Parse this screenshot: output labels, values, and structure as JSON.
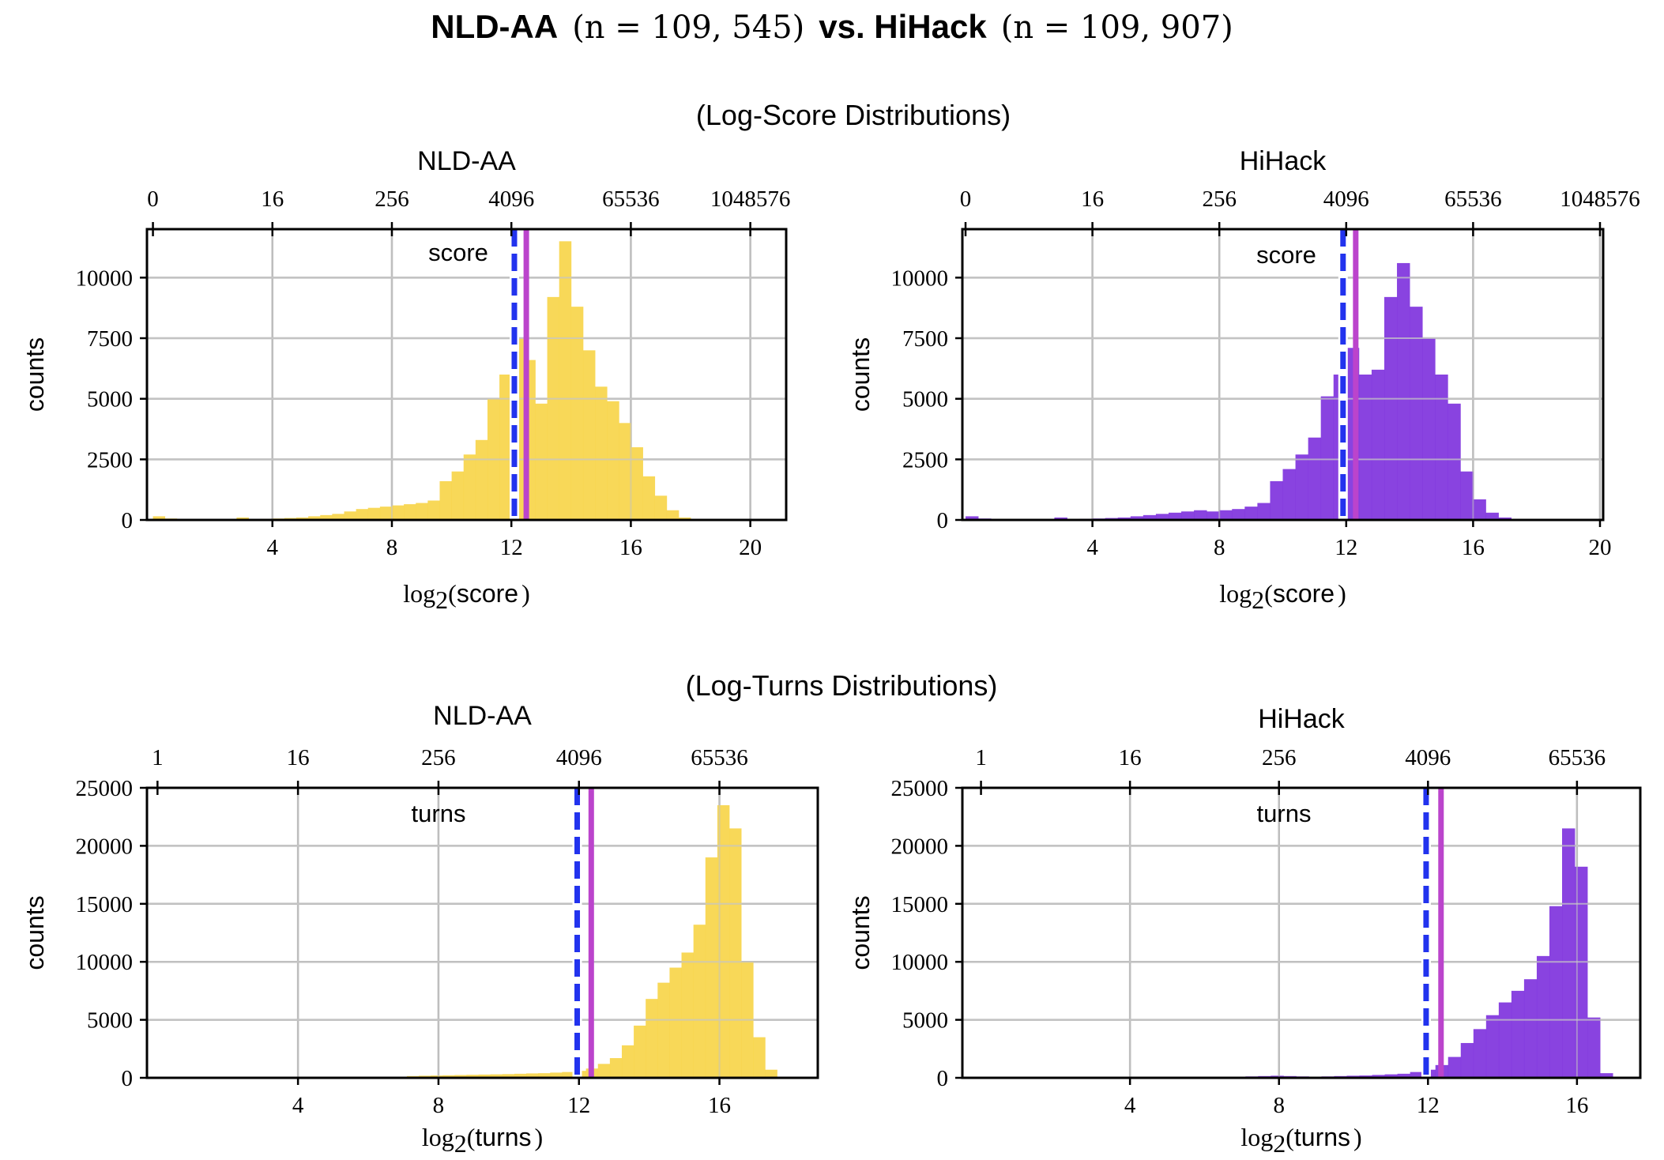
{
  "figure": {
    "title_left": "NLD-AA",
    "title_left_n": "(n = 109, 545)",
    "title_mid": "vs. HiHack",
    "title_right_n": "(n = 109, 907)",
    "section_score": "(Log-Score Distributions)",
    "section_turns": "(Log-Turns Distributions)"
  },
  "colors": {
    "nld": "#f7d54a",
    "hihack": "#7f33dd",
    "median_line": "#2233ee",
    "mean_line": "#bb44cc"
  },
  "chart_data": [
    {
      "id": "score-nld",
      "type": "bar",
      "title": "NLD-AA",
      "annotation": "score",
      "xlabel_func": "log",
      "xlabel_sub": "2",
      "xlabel_var": "score",
      "ylabel": "counts",
      "xlim": [
        -0.2,
        21.2
      ],
      "ylim": [
        0,
        12000
      ],
      "xticks": [
        4,
        8,
        12,
        16,
        20
      ],
      "yticks": [
        0,
        2500,
        5000,
        7500,
        10000
      ],
      "top_ticks": [
        0,
        4,
        8,
        12,
        16,
        20
      ],
      "top_tick_labels": [
        "0",
        "16",
        "256",
        "4096",
        "65536",
        "1048576"
      ],
      "color": "#f7d54a",
      "bin_width": 0.4,
      "bin_start": 0,
      "values": [
        150,
        60,
        20,
        10,
        20,
        30,
        30,
        100,
        40,
        50,
        60,
        80,
        100,
        150,
        200,
        250,
        350,
        450,
        500,
        550,
        600,
        650,
        700,
        800,
        1600,
        2000,
        2700,
        3300,
        5000,
        6000,
        7500,
        6600,
        4800,
        9200,
        11500,
        8800,
        7000,
        5500,
        4900,
        4000,
        3000,
        1800,
        1000,
        400,
        100
      ],
      "median": 12.1,
      "mean": 12.5
    },
    {
      "id": "score-hihack",
      "type": "bar",
      "title": "HiHack",
      "annotation": "score",
      "xlabel_func": "log",
      "xlabel_sub": "2",
      "xlabel_var": "score",
      "ylabel": "counts",
      "xlim": [
        -0.1,
        20.1
      ],
      "ylim": [
        0,
        12000
      ],
      "xticks": [
        4,
        8,
        12,
        16,
        20
      ],
      "yticks": [
        0,
        2500,
        5000,
        7500,
        10000
      ],
      "top_ticks": [
        0,
        4,
        8,
        12,
        16,
        20
      ],
      "top_tick_labels": [
        "0",
        "16",
        "256",
        "4096",
        "65536",
        "1048576"
      ],
      "color": "#7f33dd",
      "bin_width": 0.4,
      "bin_start": 0,
      "values": [
        150,
        60,
        20,
        10,
        20,
        30,
        30,
        100,
        40,
        50,
        60,
        80,
        100,
        150,
        200,
        250,
        300,
        350,
        400,
        350,
        400,
        450,
        550,
        700,
        1600,
        2100,
        2700,
        3400,
        5100,
        6000,
        7100,
        6000,
        6200,
        9200,
        10600,
        8800,
        7500,
        6000,
        4800,
        2000,
        850,
        300,
        100
      ],
      "median": 11.9,
      "mean": 12.3
    },
    {
      "id": "turns-nld",
      "type": "bar",
      "title": "NLD-AA",
      "annotation": "turns",
      "xlabel_func": "log",
      "xlabel_sub": "2",
      "xlabel_var": "turns",
      "ylabel": "counts",
      "xlim": [
        -0.3,
        18.8
      ],
      "ylim": [
        0,
        25000
      ],
      "xticks": [
        4,
        8,
        12,
        16
      ],
      "yticks": [
        0,
        5000,
        10000,
        15000,
        20000,
        25000
      ],
      "top_ticks": [
        0,
        4,
        8,
        12,
        16
      ],
      "top_tick_labels": [
        "1",
        "16",
        "256",
        "4096",
        "65536"
      ],
      "color": "#f7d54a",
      "bin_width": 0.34,
      "bin_start": 7.1,
      "values": [
        150,
        180,
        200,
        220,
        240,
        260,
        280,
        300,
        320,
        350,
        380,
        400,
        450,
        500,
        600,
        800,
        1200,
        1700,
        2800,
        4500,
        6800,
        8200,
        9500,
        10800,
        13200,
        19000,
        23500,
        21500,
        10000,
        3500,
        700
      ],
      "median": 11.95,
      "mean": 12.35
    },
    {
      "id": "turns-hihack",
      "type": "bar",
      "title": "HiHack",
      "annotation": "turns",
      "xlabel_func": "log",
      "xlabel_sub": "2",
      "xlabel_var": "turns",
      "ylabel": "counts",
      "xlim": [
        -0.5,
        17.7
      ],
      "ylim": [
        0,
        25000
      ],
      "xticks": [
        4,
        8,
        12,
        16
      ],
      "yticks": [
        0,
        5000,
        10000,
        15000,
        20000,
        25000
      ],
      "top_ticks": [
        0,
        4,
        8,
        12,
        16
      ],
      "top_tick_labels": [
        "1",
        "16",
        "256",
        "4096",
        "65536"
      ],
      "color": "#7f33dd",
      "bin_width": 0.34,
      "bin_start": 7.1,
      "values": [
        120,
        150,
        180,
        150,
        120,
        100,
        120,
        150,
        180,
        200,
        250,
        300,
        350,
        500,
        700,
        1100,
        1800,
        3000,
        4200,
        5400,
        6500,
        7500,
        8500,
        10500,
        14800,
        21500,
        18200,
        5200,
        400
      ],
      "median": 11.95,
      "mean": 12.35
    }
  ]
}
